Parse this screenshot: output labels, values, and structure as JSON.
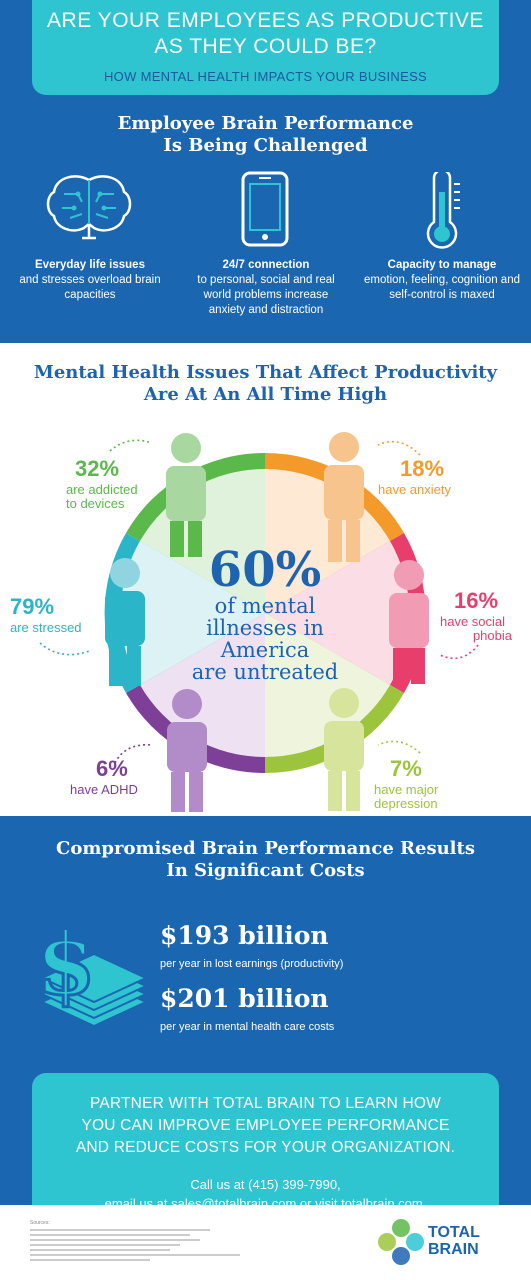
{
  "header": {
    "title_line1": "ARE YOUR EMPLOYEES AS PRODUCTIVE",
    "title_line2": "AS THEY COULD BE?",
    "subtitle": "HOW MENTAL HEALTH IMPACTS YOUR BUSINESS"
  },
  "performance": {
    "heading_line1": "Employee Brain Performance",
    "heading_line2": "Is Being Challenged",
    "items": [
      {
        "icon": "brain-icon",
        "bold": "Everyday life issues",
        "text": "and stresses overload brain capacities"
      },
      {
        "icon": "phone-icon",
        "bold": "24/7 connection",
        "text": "to personal, social and real world problems increase anxiety and distraction"
      },
      {
        "icon": "thermometer-icon",
        "bold": "Capacity to manage",
        "text": "emotion, feeling, cognition and self-control is maxed"
      }
    ]
  },
  "issues": {
    "heading_line1": "Mental Health Issues That Affect Productivity",
    "heading_line2": "Are At An All Time High",
    "center_pct": "60%",
    "center_l1": "of mental",
    "center_l2": "illnesses in",
    "center_l3": "America",
    "center_l4": "are untreated",
    "stats": [
      {
        "pct": "32%",
        "l1": "are addicted",
        "l2": "to devices",
        "color": "#5bb84a"
      },
      {
        "pct": "18%",
        "l1": "have anxiety",
        "l2": "",
        "color": "#f39a2b"
      },
      {
        "pct": "79%",
        "l1": "are stressed",
        "l2": "",
        "color": "#2bb5c9"
      },
      {
        "pct": "16%",
        "l1": "have social",
        "l2": "phobia",
        "color": "#e83e6b"
      },
      {
        "pct": "6%",
        "l1": "have ADHD",
        "l2": "",
        "color": "#7d3f98"
      },
      {
        "pct": "7%",
        "l1": "have major",
        "l2": "depression",
        "color": "#9cc43c"
      }
    ]
  },
  "costs": {
    "heading_line1": "Compromised Brain Performance Results",
    "heading_line2": "In Significant Costs",
    "amount1": "$193 billion",
    "desc1": "per year in lost earnings (productivity)",
    "amount2": "$201 billion",
    "desc2": "per year in mental health care costs"
  },
  "cta": {
    "line1": "PARTNER WITH TOTAL BRAIN TO LEARN HOW",
    "line2": "YOU CAN IMPROVE EMPLOYEE PERFORMANCE",
    "line3": "AND REDUCE COSTS FOR YOUR ORGANIZATION.",
    "contact1": "Call us at (415) 399-7990,",
    "contact2": "email us at sales@totalbrain.com or visit totalbrain.com."
  },
  "footer": {
    "sources_label": "Sources:",
    "logo_l1": "TOTAL",
    "logo_l2": "BRAIN"
  }
}
